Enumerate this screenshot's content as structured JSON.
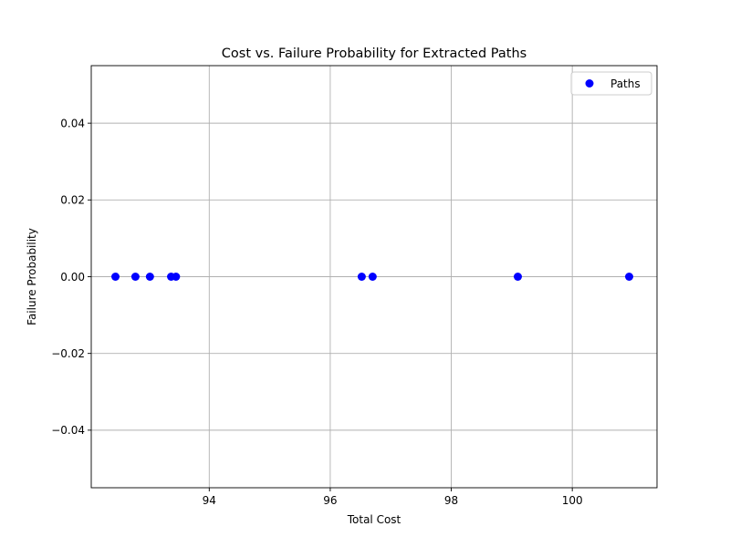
{
  "chart_data": {
    "type": "scatter",
    "title": "Cost vs. Failure Probability for Extracted Paths",
    "xlabel": "Total Cost",
    "ylabel": "Failure Probability",
    "xlim": [
      92.05,
      101.4
    ],
    "ylim": [
      -0.055,
      0.055
    ],
    "x_ticks": [
      94,
      96,
      98,
      100
    ],
    "x_tick_labels": [
      "94",
      "96",
      "98",
      "100"
    ],
    "y_ticks": [
      -0.04,
      -0.02,
      0.0,
      0.02,
      0.04
    ],
    "y_tick_labels": [
      "−0.04",
      "−0.02",
      "0.00",
      "0.02",
      "0.04"
    ],
    "grid": true,
    "legend": {
      "position": "top-right",
      "entries": [
        "Paths"
      ]
    },
    "series": [
      {
        "name": "Paths",
        "color": "#0000ff",
        "x": [
          92.45,
          92.78,
          93.02,
          93.37,
          93.45,
          96.52,
          96.7,
          99.1,
          100.94
        ],
        "y": [
          0,
          0,
          0,
          0,
          0,
          0,
          0,
          0,
          0
        ]
      }
    ]
  }
}
